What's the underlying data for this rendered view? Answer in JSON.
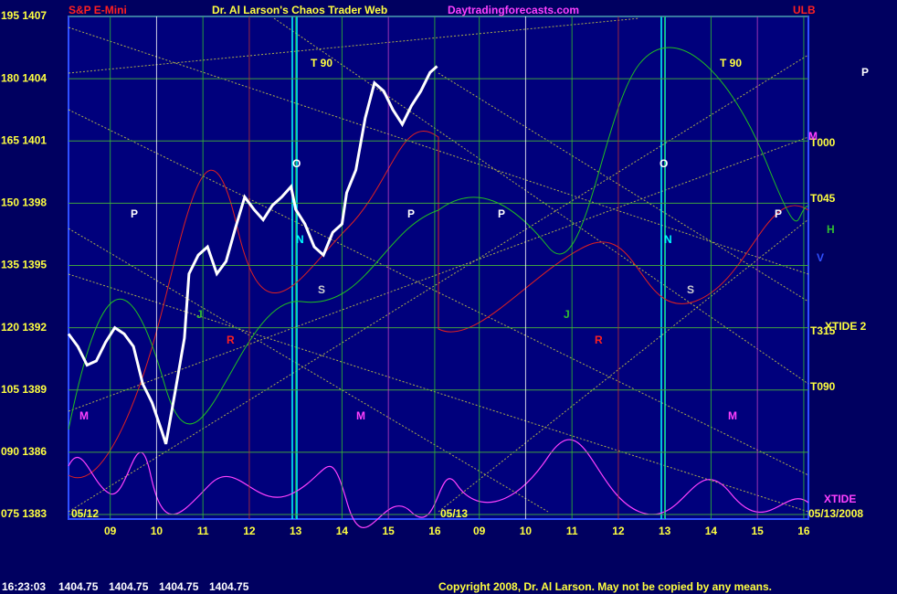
{
  "chart_data": {
    "type": "line",
    "header": {
      "symbol": "S&P E-Mini",
      "title": "Dr. Al Larson's Chaos Trader Web",
      "site": "Daytradingforecasts.com"
    },
    "ylim": [
      1383,
      1407
    ],
    "yticks": [
      {
        "value": 1407,
        "label": "195 1407"
      },
      {
        "value": 1404,
        "label": "180 1404"
      },
      {
        "value": 1401,
        "label": "165 1401"
      },
      {
        "value": 1398,
        "label": "150 1398"
      },
      {
        "value": 1395,
        "label": "135 1395"
      },
      {
        "value": 1392,
        "label": "120 1392"
      },
      {
        "value": 1389,
        "label": "105 1389"
      },
      {
        "value": 1386,
        "label": "090 1386"
      },
      {
        "value": 1383,
        "label": "075 1383"
      }
    ],
    "grid": true,
    "xlim": [
      8.1,
      16.1
    ],
    "days": [
      {
        "label": "05/12",
        "xticks": [
          {
            "value": 9,
            "label": "09"
          },
          {
            "value": 10,
            "label": "10"
          },
          {
            "value": 11,
            "label": "11"
          },
          {
            "value": 12,
            "label": "12"
          },
          {
            "value": 13,
            "label": "13"
          },
          {
            "value": 14,
            "label": "14"
          },
          {
            "value": 15,
            "label": "15"
          },
          {
            "value": 16,
            "label": "16"
          }
        ]
      },
      {
        "label": "05/13",
        "xticks": [
          {
            "value": 9,
            "label": "09"
          },
          {
            "value": 10,
            "label": "10"
          },
          {
            "value": 11,
            "label": "11"
          },
          {
            "value": 12,
            "label": "12"
          },
          {
            "value": 13,
            "label": "13"
          },
          {
            "value": 14,
            "label": "14"
          },
          {
            "value": 15,
            "label": "15"
          },
          {
            "value": 16,
            "label": "16"
          }
        ]
      }
    ],
    "end_date": "05/13/2008",
    "x": [
      8.1,
      8.3,
      8.5,
      8.7,
      8.9,
      9.1,
      9.3,
      9.5,
      9.7,
      9.9,
      10.1,
      10.2,
      10.4,
      10.6,
      10.7,
      10.9,
      11.1,
      11.3,
      11.5,
      11.7,
      11.9,
      12.1,
      12.3,
      12.5,
      12.7,
      12.9,
      13.0,
      13.2,
      13.4,
      13.6,
      13.8,
      14.0,
      14.1,
      14.3,
      14.5,
      14.7,
      14.9,
      15.1,
      15.3,
      15.5,
      15.7,
      15.9,
      16.05
    ],
    "series": [
      {
        "color": "#ffffff",
        "values": [
          1391.7,
          1391.1,
          1390.2,
          1390.4,
          1391.3,
          1392.0,
          1391.7,
          1391.1,
          1389.3,
          1388.4,
          1387.1,
          1386.4,
          1388.9,
          1391.5,
          1394.6,
          1395.5,
          1395.9,
          1394.6,
          1395.2,
          1396.8,
          1398.3,
          1397.7,
          1397.2,
          1397.9,
          1398.3,
          1398.8,
          1397.7,
          1397.0,
          1395.9,
          1395.5,
          1396.6,
          1397.0,
          1398.5,
          1399.6,
          1402.1,
          1403.8,
          1403.4,
          1402.5,
          1401.8,
          1402.7,
          1403.4,
          1404.3,
          1404.6
        ]
      }
    ],
    "annotations": [
      "T 90",
      "T 90",
      "ULB",
      "T000",
      "T045",
      "T315",
      "T090",
      "XTIDE",
      "XTIDE 2",
      "M",
      "M",
      "M",
      "M",
      "P",
      "P",
      "P",
      "P",
      "P",
      "O",
      "O",
      "S",
      "S",
      "N",
      "N",
      "J",
      "J",
      "R",
      "R",
      "V",
      "H"
    ],
    "status": {
      "time": "16:23:03",
      "quotes": [
        "1404.75",
        "1404.75",
        "1404.75",
        "1404.75"
      ]
    },
    "copyright": "Copyright 2008, Dr. Al Larson. May not be copied by any means."
  }
}
